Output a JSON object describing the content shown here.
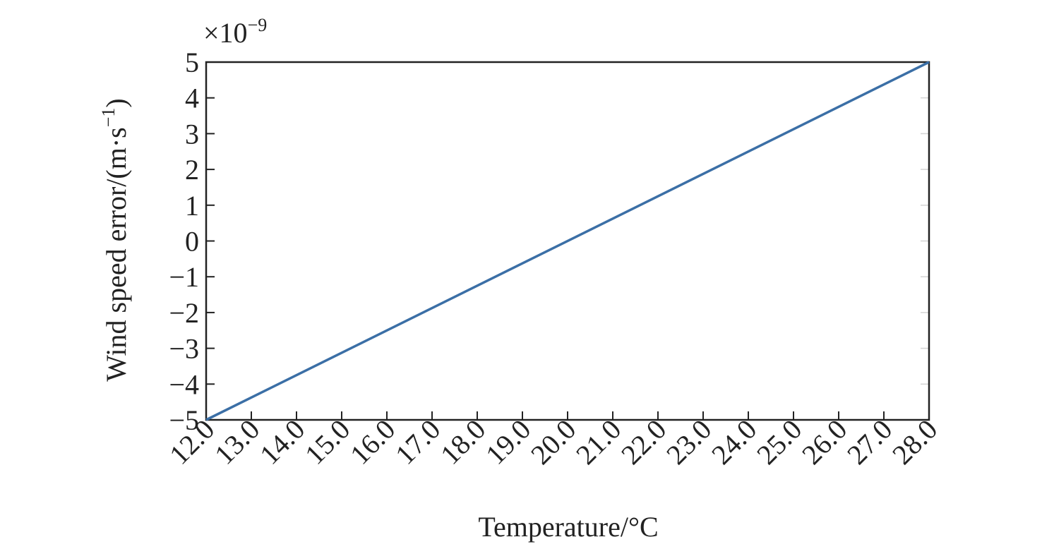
{
  "chart_data": {
    "type": "line",
    "xlabel": "Temperature/°C",
    "ylabel": [
      "Wind speed error/(m·s",
      "−1",
      ")"
    ],
    "y_multiplier": [
      "×10",
      "−9"
    ],
    "x": [
      12,
      28
    ],
    "series": [
      {
        "color": "#3b6fa6",
        "values": [
          -5,
          5
        ]
      }
    ],
    "xlim": [
      12,
      28
    ],
    "ylim": [
      -5,
      5
    ],
    "xticks": [
      {
        "value": 12,
        "label": "12.0"
      },
      {
        "value": 13,
        "label": "13.0"
      },
      {
        "value": 14,
        "label": "14.0"
      },
      {
        "value": 15,
        "label": "15.0"
      },
      {
        "value": 16,
        "label": "16.0"
      },
      {
        "value": 17,
        "label": "17.0"
      },
      {
        "value": 18,
        "label": "18.0"
      },
      {
        "value": 19,
        "label": "19.0"
      },
      {
        "value": 20,
        "label": "20.0"
      },
      {
        "value": 21,
        "label": "21.0"
      },
      {
        "value": 22,
        "label": "22.0"
      },
      {
        "value": 23,
        "label": "23.0"
      },
      {
        "value": 24,
        "label": "24.0"
      },
      {
        "value": 25,
        "label": "25.0"
      },
      {
        "value": 26,
        "label": "26.0"
      },
      {
        "value": 27,
        "label": "27.0"
      },
      {
        "value": 28,
        "label": "28.0"
      }
    ],
    "yticks": [
      {
        "value": -5,
        "label": "−5"
      },
      {
        "value": -4,
        "label": "−4"
      },
      {
        "value": -3,
        "label": "−3"
      },
      {
        "value": -2,
        "label": "−2"
      },
      {
        "value": -1,
        "label": "−1"
      },
      0,
      1,
      2,
      3,
      4,
      5
    ],
    "grid": false
  }
}
